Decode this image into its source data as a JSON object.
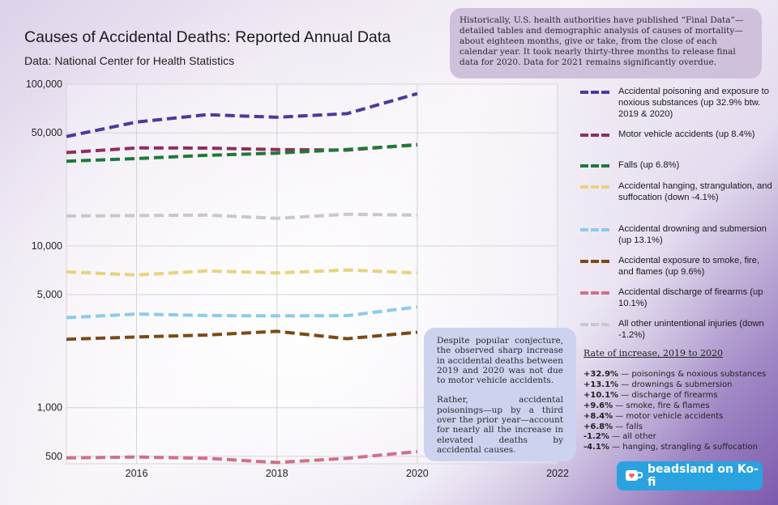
{
  "header": {
    "title": "Causes of Accidental Deaths: Reported Annual Data",
    "subtitle": "Data: National Center for Health Statistics"
  },
  "notes": {
    "top": "Historically, U.S. health authorities have published “Final Data”—detailed tables and demographic analysis of causes of mortality—about eighteen months, give or take, from the close of each calendar year. It took nearly thirty-three months to release final data for 2020. Data for 2021 remains significantly overdue.",
    "middle_p1": "Despite popular conjecture, the observed sharp increase in accidental deaths between 2019 and 2020 was not due to motor vehicle accidents.",
    "middle_p2": "Rather, accidental poisonings—up by a third over the prior year—account for nearly all the increase in elevated deaths by accidental causes."
  },
  "rate_box": {
    "heading": "Rate of increase, 2019 to 2020",
    "rows": [
      {
        "value": "+32.9%",
        "text": " — poisonings & noxious substances"
      },
      {
        "value": "+13.1%",
        "text": " — drownings & submersion"
      },
      {
        "value": "+10.1%",
        "text": " — discharge of firearms"
      },
      {
        "value": "+9.6%",
        "text": " — smoke, fire & flames"
      },
      {
        "value": "+8.4%",
        "text": " — motor vehicle accidents"
      },
      {
        "value": "+6.8%",
        "text": " — falls"
      },
      {
        "value": "-1.2%",
        "text": " — all other"
      },
      {
        "value": "-4.1%",
        "text": " — hanging, strangling & suffocation"
      }
    ]
  },
  "kofi": {
    "label": "beadsland on Ko-fi"
  },
  "chart_data": {
    "type": "line",
    "title": "Causes of Accidental Deaths: Reported Annual Data",
    "subtitle": "Data: National Center for Health Statistics",
    "y_scale": "log",
    "xlim": [
      2015,
      2022
    ],
    "ylim": [
      450,
      100000
    ],
    "x_ticks": [
      2016,
      2018,
      2020,
      2022
    ],
    "y_ticks": [
      500,
      1000,
      5000,
      10000,
      50000,
      100000
    ],
    "y_tick_labels": [
      "500",
      "1,000",
      "5,000",
      "10,000",
      "50,000",
      "100,000"
    ],
    "x_tick_labels": [
      "2016",
      "2018",
      "2020",
      "2022"
    ],
    "grid": true,
    "legend_position": "right",
    "x": [
      2015,
      2016,
      2017,
      2018,
      2019,
      2020
    ],
    "series": [
      {
        "name": "Accidental poisoning and exposure to noxious substances (up 32.9% btw. 2019 & 2020)",
        "color": "#4b3a9c",
        "values": [
          47478,
          58335,
          64795,
          62399,
          65773,
          87404
        ]
      },
      {
        "name": "Motor vehicle accidents (up 8.4%)",
        "color": "#8e2f5a",
        "values": [
          37757,
          40327,
          40231,
          39404,
          39107,
          42339
        ]
      },
      {
        "name": "Falls (up 6.8%)",
        "color": "#1e7a36",
        "values": [
          33381,
          34673,
          36338,
          37455,
          39443,
          42114
        ]
      },
      {
        "name": "Accidental hanging, strangulation, and suffocation (down -4.1%)",
        "color": "#e8d37c",
        "values": [
          6914,
          6610,
          7000,
          6800,
          7100,
          6800
        ]
      },
      {
        "name": "Accidental drowning and submersion (up 13.1%)",
        "color": "#8ccbeb",
        "values": [
          3602,
          3786,
          3709,
          3692,
          3707,
          4193
        ]
      },
      {
        "name": "Accidental exposure to smoke, fire, and flames (up 9.6%)",
        "color": "#7a4a14",
        "values": [
          2646,
          2734,
          2812,
          2965,
          2670,
          2926
        ]
      },
      {
        "name": "Accidental discharge of firearms (up 10.1%)",
        "color": "#d07088",
        "values": [
          489,
          495,
          486,
          458,
          486,
          535
        ]
      },
      {
        "name": "All other unintentional injuries (down -1.2%)",
        "color": "#c8c8cc",
        "values": [
          15300,
          15400,
          15500,
          14800,
          15700,
          15500
        ]
      }
    ]
  }
}
